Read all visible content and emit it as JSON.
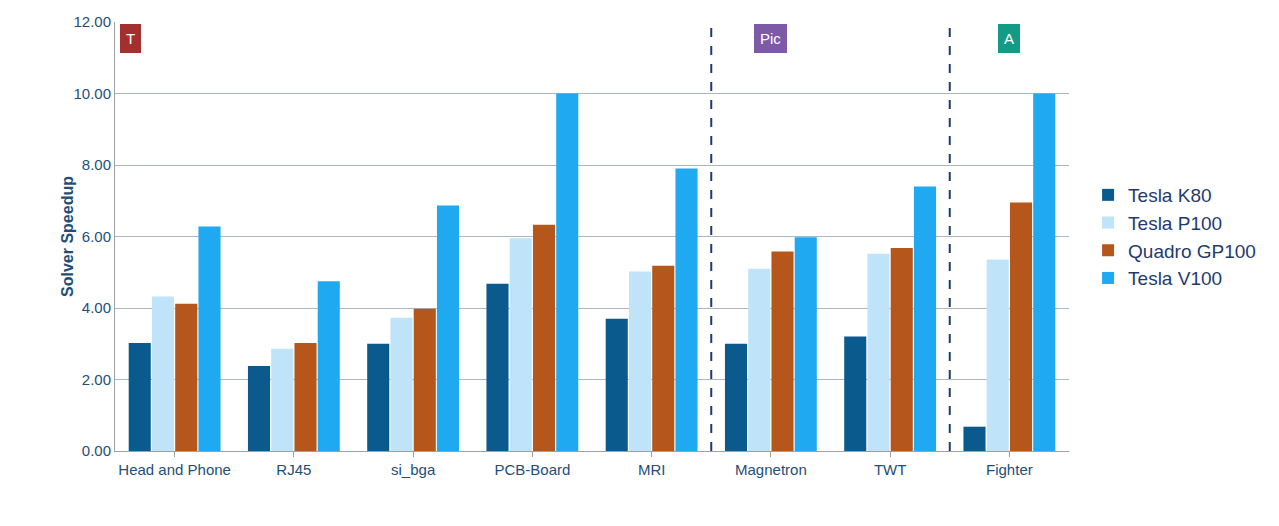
{
  "chart_data": {
    "type": "bar",
    "y_label": "Solver Speedup",
    "categories": [
      "Head and Phone",
      "RJ45",
      "si_bga",
      "PCB-Board",
      "MRI",
      "Magnetron",
      "TWT",
      "Fighter"
    ],
    "series": [
      {
        "name": "Tesla K80",
        "color": "#0b5a8e",
        "values": [
          3.02,
          2.38,
          3.0,
          4.68,
          3.7,
          3.0,
          3.2,
          0.68
        ]
      },
      {
        "name": "Tesla P100",
        "color": "#bfe3f8",
        "values": [
          4.32,
          2.86,
          3.73,
          5.95,
          5.02,
          5.1,
          5.52,
          5.36
        ]
      },
      {
        "name": "Quadro GP100",
        "color": "#b5561a",
        "values": [
          4.12,
          3.02,
          3.98,
          6.33,
          5.18,
          5.58,
          5.68,
          6.95
        ]
      },
      {
        "name": "Tesla V100",
        "color": "#1ea9f0",
        "values": [
          6.28,
          4.75,
          6.87,
          10.0,
          7.9,
          5.98,
          7.4,
          10.0
        ]
      }
    ],
    "ylim": [
      0,
      12
    ],
    "yticks": [
      {
        "value": 0,
        "label": "0.00"
      },
      {
        "value": 2,
        "label": "2.00"
      },
      {
        "value": 4,
        "label": "4.00"
      },
      {
        "value": 6,
        "label": "6.00"
      },
      {
        "value": 8,
        "label": "8.00"
      },
      {
        "value": 10,
        "label": "10.00"
      },
      {
        "value": 12,
        "label": "12.00"
      }
    ],
    "grid": true,
    "legend": "right",
    "annotations": [
      {
        "text": "T",
        "category": "Head and Phone",
        "color": "#a3302e"
      },
      {
        "text": "Pic",
        "category": "Magnetron",
        "color": "#7c5aa8"
      },
      {
        "text": "A",
        "category": "Fighter",
        "color": "#129c86"
      }
    ]
  }
}
